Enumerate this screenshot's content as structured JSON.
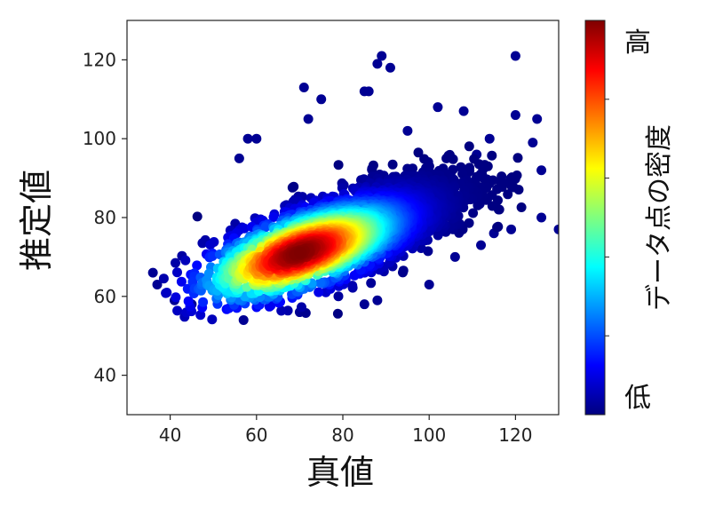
{
  "chart_data": {
    "type": "scatter",
    "title": "",
    "xlabel": "真値",
    "ylabel": "推定値",
    "xlim": [
      30,
      130
    ],
    "ylim": [
      30,
      130
    ],
    "x_ticks": [
      40,
      60,
      80,
      100,
      120
    ],
    "y_ticks": [
      40,
      60,
      80,
      100,
      120
    ],
    "grid": false,
    "colormap": "jet",
    "colorbar": {
      "label": "データ点の密度",
      "high_label": "高",
      "low_label": "低",
      "stops": [
        "#00007f",
        "#0000ff",
        "#007fff",
        "#00ffff",
        "#7fff7f",
        "#ffff00",
        "#ff7f00",
        "#ff0000",
        "#7f0000"
      ]
    },
    "density_core": {
      "x": 70,
      "y": 71
    },
    "outlier_points": [
      {
        "x": 36,
        "y": 66
      },
      {
        "x": 37,
        "y": 63
      },
      {
        "x": 71,
        "y": 113
      },
      {
        "x": 75,
        "y": 110
      },
      {
        "x": 72,
        "y": 105
      },
      {
        "x": 88,
        "y": 119
      },
      {
        "x": 89,
        "y": 121
      },
      {
        "x": 91,
        "y": 118
      },
      {
        "x": 85,
        "y": 112
      },
      {
        "x": 86,
        "y": 112
      },
      {
        "x": 120,
        "y": 121
      },
      {
        "x": 120,
        "y": 106
      },
      {
        "x": 125,
        "y": 105
      },
      {
        "x": 124,
        "y": 99
      },
      {
        "x": 126,
        "y": 92
      },
      {
        "x": 126,
        "y": 80
      },
      {
        "x": 130,
        "y": 77
      },
      {
        "x": 119,
        "y": 77
      },
      {
        "x": 58,
        "y": 100
      },
      {
        "x": 60,
        "y": 100
      },
      {
        "x": 56,
        "y": 95
      },
      {
        "x": 57,
        "y": 54
      },
      {
        "x": 70,
        "y": 56
      },
      {
        "x": 88,
        "y": 59
      },
      {
        "x": 85,
        "y": 58
      },
      {
        "x": 41,
        "y": 59
      },
      {
        "x": 45,
        "y": 58
      },
      {
        "x": 100,
        "y": 63
      },
      {
        "x": 106,
        "y": 70
      },
      {
        "x": 112,
        "y": 73
      },
      {
        "x": 115,
        "y": 76
      },
      {
        "x": 102,
        "y": 108
      },
      {
        "x": 108,
        "y": 107
      },
      {
        "x": 114,
        "y": 100
      },
      {
        "x": 111,
        "y": 96
      },
      {
        "x": 95,
        "y": 102
      }
    ]
  }
}
